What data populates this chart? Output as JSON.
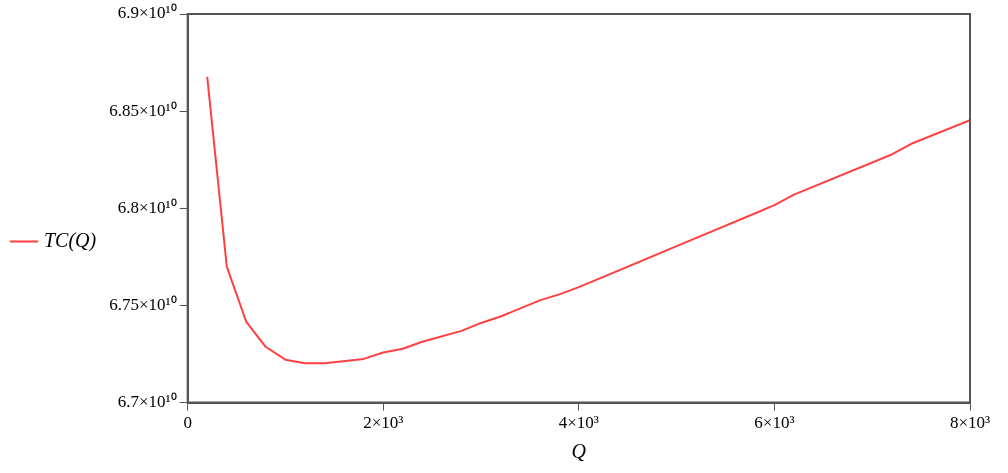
{
  "chart_data": {
    "type": "line",
    "xlabel": "Q",
    "legend": "left",
    "marker": "none",
    "line_style": "solid",
    "grid": false,
    "x": [
      200,
      400,
      600,
      800,
      1000,
      1200,
      1400,
      1800,
      2000,
      2200,
      2400,
      2800,
      3000,
      3200,
      3600,
      3800,
      4000,
      5000,
      6000,
      6200,
      7200,
      7400,
      8000
    ],
    "series": [
      {
        "name": "TC(Q)",
        "color": "#ff4040",
        "values": [
          68676000000.0,
          67700000000.0,
          67415000000.0,
          67286000000.0,
          67221000000.0,
          67203000000.0,
          67203000000.0,
          67225000000.0,
          67258000000.0,
          67277000000.0,
          67313000000.0,
          67369000000.0,
          67410000000.0,
          67443000000.0,
          67526000000.0,
          67557000000.0,
          67594000000.0,
          67805000000.0,
          68016000000.0,
          68070000000.0,
          68277000000.0,
          68332000000.0,
          68454000000.0
        ]
      }
    ],
    "xlim": [
      0,
      8000
    ],
    "xticks": [
      0,
      {
        "value": 2000,
        "label": "2×10³"
      },
      {
        "value": 4000,
        "label": "4×10³"
      },
      {
        "value": 6000,
        "label": "6×10³"
      },
      {
        "value": 8000,
        "label": "8×10³"
      }
    ],
    "ylim": [
      67000000000.0,
      69000000000.0
    ],
    "yticks": [
      {
        "value": 67000000000.0,
        "label": "6.7×10¹⁰"
      },
      {
        "value": 67500000000.0,
        "label": "6.75×10¹⁰"
      },
      {
        "value": 68000000000.0,
        "label": "6.8×10¹⁰"
      },
      {
        "value": 68500000000.0,
        "label": "6.85×10¹⁰"
      },
      {
        "value": 69000000000.0,
        "label": "6.9×10¹⁰"
      }
    ]
  }
}
